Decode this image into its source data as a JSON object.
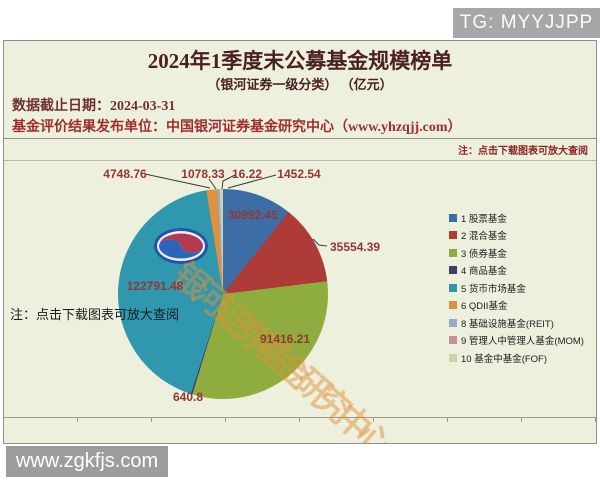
{
  "watermark_top": {
    "label": "TG: MYYJJPP"
  },
  "watermark_bottom": {
    "label": "www.zgkfjs.com"
  },
  "header": {
    "title": "2024年1季度末公募基金规模榜单",
    "subtitle": "（银河证券一级分类） （亿元）",
    "data_cutoff": "数据截止日期：2024-03-31",
    "publisher": "基金评价结果发布单位：中国银河证券基金研究中心（www.yhzqjj.com）",
    "note_top": "注：点击下载图表可放大查阅",
    "note_bottom": "注：点击下载图表可放大查阅"
  },
  "chart_watermark": {
    "logo_icon": "galaxy-securities-logo",
    "text": "银河证券基金研究中心"
  },
  "chart_data": {
    "type": "pie",
    "title": "2024年1季度末公募基金规模榜单",
    "subtitle": "（银河证券一级分类）（亿元）",
    "unit": "亿元",
    "direction": "clockwise",
    "start_angle_deg": 0,
    "legend_position": "right",
    "label_color": "#943634",
    "categories": [
      "1 股票基金",
      "2 混合基金",
      "3 债券基金",
      "4 商品基金",
      "5 货币市场基金",
      "6 QDII基金",
      "8 基础设施基金(REIT)",
      "9 管理人中管理人基金(MOM)",
      "10 基金中基金(FOF)"
    ],
    "values": [
      30992.45,
      35554.39,
      91416.21,
      640.8,
      122791.48,
      4748.76,
      1078.33,
      16.22,
      1452.54
    ],
    "colors": [
      "#3c6ea5",
      "#ae3b38",
      "#8ead3e",
      "#463a63",
      "#2f97ae",
      "#e0913c",
      "#98a7cb",
      "#c49398",
      "#cbd3ab"
    ]
  }
}
